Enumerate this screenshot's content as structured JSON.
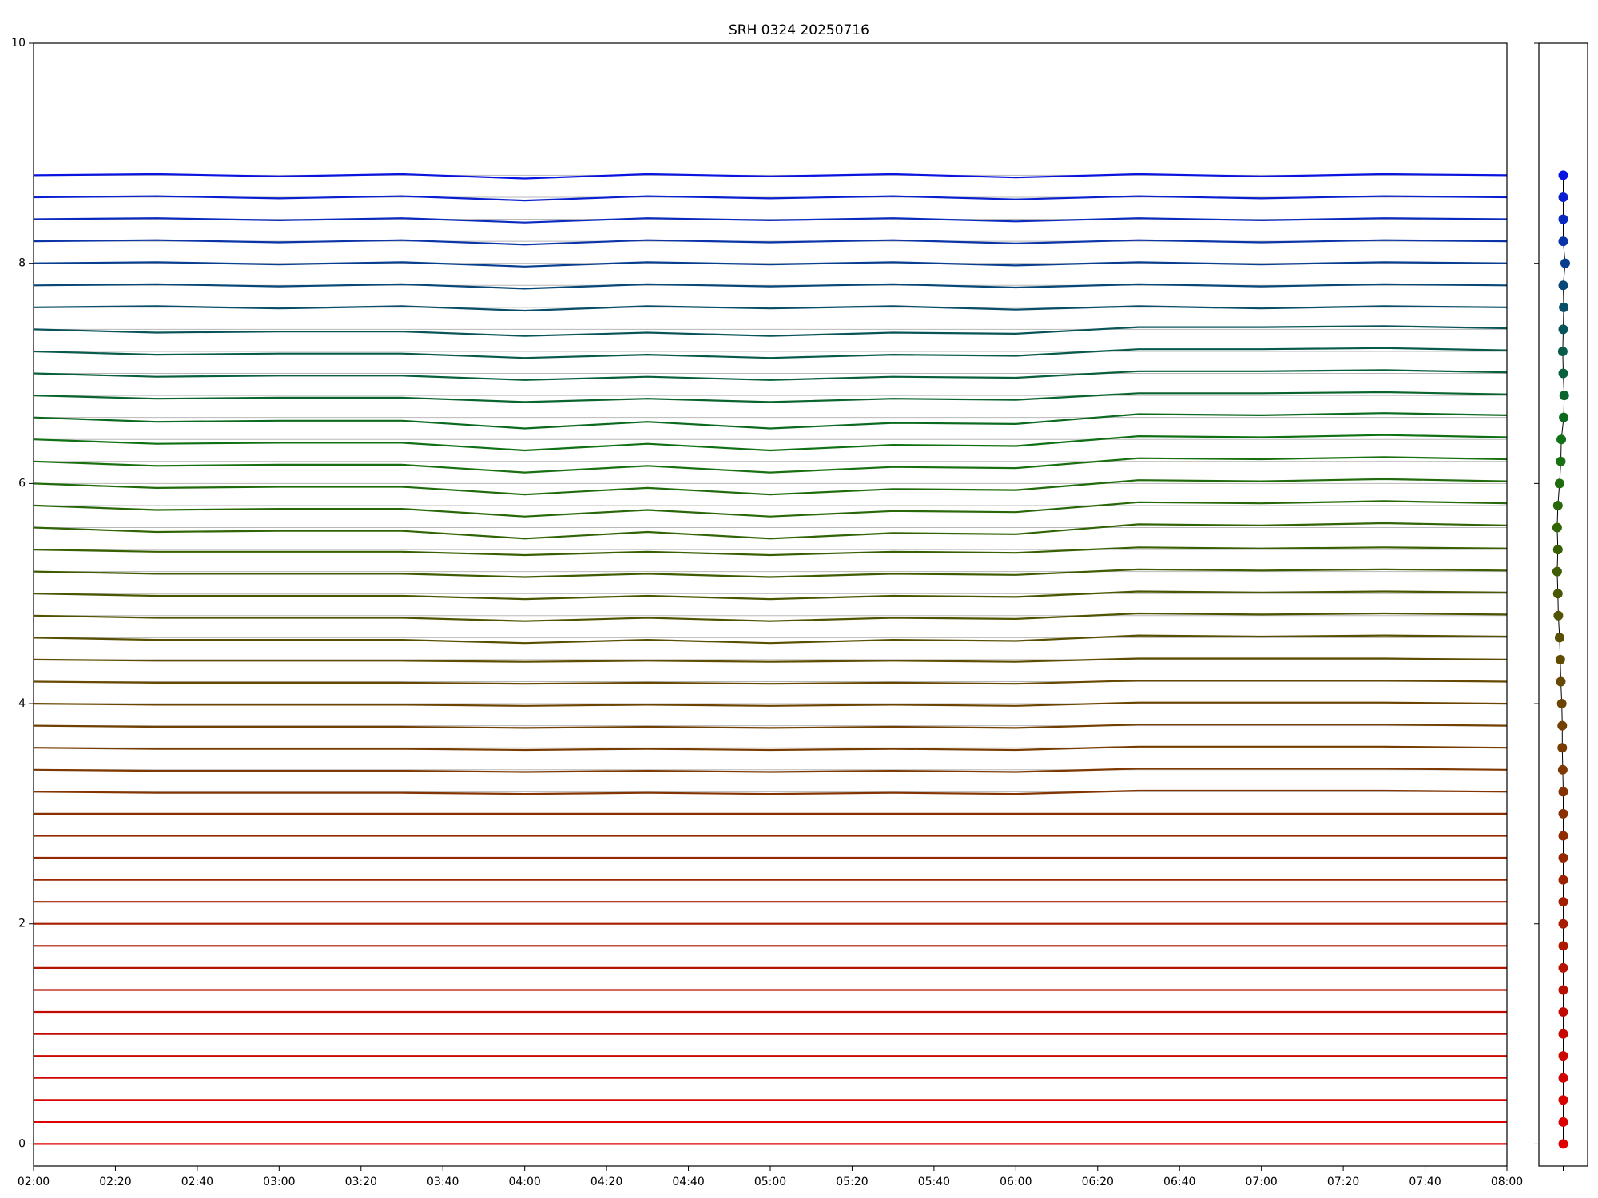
{
  "chart_data": [
    {
      "type": "line",
      "title": "SRH 0324 20250716",
      "x": [
        "02:00",
        "02:30",
        "03:00",
        "03:30",
        "04:00",
        "04:30",
        "05:00",
        "05:30",
        "06:00",
        "06:30",
        "07:00",
        "07:30",
        "08:00"
      ],
      "xlim": [
        "02:00",
        "08:00"
      ],
      "xticks": [
        "02:00",
        "02:20",
        "02:40",
        "03:00",
        "03:20",
        "03:40",
        "04:00",
        "04:20",
        "04:40",
        "05:00",
        "05:20",
        "05:40",
        "06:00",
        "06:20",
        "06:40",
        "07:00",
        "07:20",
        "07:40",
        "08:00"
      ],
      "ylim": [
        -0.2,
        10
      ],
      "yticks": [
        0,
        2,
        4,
        6,
        8,
        10
      ],
      "series": [
        {
          "offset": 0,
          "color": "#e00000",
          "values": [
            0,
            0,
            0,
            0,
            0,
            0,
            0,
            0,
            0,
            0,
            0,
            0,
            0
          ]
        },
        {
          "offset": 0.2,
          "color": "#dc0200",
          "values": [
            0.2,
            0.2,
            0.2,
            0.2,
            0.2,
            0.2,
            0.2,
            0.2,
            0.2,
            0.2,
            0.2,
            0.2,
            0.2
          ]
        },
        {
          "offset": 0.4,
          "color": "#d80400",
          "values": [
            0.4,
            0.4,
            0.4,
            0.4,
            0.4,
            0.4,
            0.4,
            0.4,
            0.4,
            0.4,
            0.4,
            0.4,
            0.4
          ]
        },
        {
          "offset": 0.6,
          "color": "#d20600",
          "values": [
            0.6,
            0.6,
            0.6,
            0.6,
            0.6,
            0.6,
            0.6,
            0.6,
            0.6,
            0.6,
            0.6,
            0.6,
            0.6
          ]
        },
        {
          "offset": 0.8,
          "color": "#cc0800",
          "values": [
            0.8,
            0.8,
            0.8,
            0.8,
            0.8,
            0.8,
            0.8,
            0.8,
            0.8,
            0.8,
            0.8,
            0.8,
            0.8
          ]
        },
        {
          "offset": 1,
          "color": "#c60a00",
          "values": [
            1,
            1,
            1,
            1,
            1,
            1,
            1,
            1,
            1,
            1,
            1,
            1,
            1
          ]
        },
        {
          "offset": 1.2,
          "color": "#c00c00",
          "values": [
            1.2,
            1.2,
            1.2,
            1.2,
            1.2,
            1.2,
            1.2,
            1.2,
            1.2,
            1.2,
            1.2,
            1.2,
            1.2
          ]
        },
        {
          "offset": 1.4,
          "color": "#ba1000",
          "values": [
            1.4,
            1.4,
            1.4,
            1.4,
            1.4,
            1.4,
            1.4,
            1.4,
            1.4,
            1.4,
            1.4,
            1.4,
            1.4
          ]
        },
        {
          "offset": 1.6,
          "color": "#b41400",
          "values": [
            1.6,
            1.6,
            1.6,
            1.6,
            1.6,
            1.6,
            1.6,
            1.6,
            1.6,
            1.6,
            1.6,
            1.6,
            1.6
          ]
        },
        {
          "offset": 1.8,
          "color": "#ae1800",
          "values": [
            1.8,
            1.8,
            1.8,
            1.8,
            1.8,
            1.8,
            1.8,
            1.8,
            1.8,
            1.8,
            1.8,
            1.8,
            1.8
          ]
        },
        {
          "offset": 2,
          "color": "#a81c00",
          "values": [
            2,
            2,
            2,
            2,
            2,
            2,
            2,
            2,
            2,
            2,
            2,
            2,
            2
          ]
        },
        {
          "offset": 2.2,
          "color": "#a22000",
          "values": [
            2.2,
            2.2,
            2.2,
            2.2,
            2.2,
            2.2,
            2.2,
            2.2,
            2.2,
            2.2,
            2.2,
            2.2,
            2.2
          ]
        },
        {
          "offset": 2.4,
          "color": "#9c2400",
          "values": [
            2.4,
            2.4,
            2.4,
            2.4,
            2.4,
            2.4,
            2.4,
            2.4,
            2.4,
            2.4,
            2.4,
            2.4,
            2.4
          ]
        },
        {
          "offset": 2.6,
          "color": "#962800",
          "values": [
            2.6,
            2.6,
            2.6,
            2.6,
            2.6,
            2.6,
            2.6,
            2.6,
            2.6,
            2.6,
            2.6,
            2.6,
            2.6
          ]
        },
        {
          "offset": 2.8,
          "color": "#902c00",
          "values": [
            2.8,
            2.8,
            2.8,
            2.8,
            2.8,
            2.8,
            2.8,
            2.8,
            2.8,
            2.8,
            2.8,
            2.8,
            2.8
          ]
        },
        {
          "offset": 3,
          "color": "#8a3000",
          "values": [
            3,
            3,
            3,
            3,
            3,
            3,
            3,
            3,
            3,
            3,
            3,
            3,
            3
          ]
        },
        {
          "offset": 3.2,
          "color": "#843400",
          "values": [
            3.2,
            3.19,
            3.19,
            3.19,
            3.18,
            3.19,
            3.18,
            3.19,
            3.18,
            3.21,
            3.21,
            3.21,
            3.2
          ]
        },
        {
          "offset": 3.4,
          "color": "#7e3800",
          "values": [
            3.4,
            3.39,
            3.39,
            3.39,
            3.38,
            3.39,
            3.38,
            3.39,
            3.38,
            3.41,
            3.41,
            3.41,
            3.4
          ]
        },
        {
          "offset": 3.6,
          "color": "#783c00",
          "values": [
            3.6,
            3.59,
            3.59,
            3.59,
            3.58,
            3.59,
            3.58,
            3.59,
            3.58,
            3.61,
            3.61,
            3.61,
            3.6
          ]
        },
        {
          "offset": 3.8,
          "color": "#724000",
          "values": [
            3.8,
            3.79,
            3.79,
            3.79,
            3.78,
            3.79,
            3.78,
            3.79,
            3.78,
            3.81,
            3.81,
            3.81,
            3.8
          ]
        },
        {
          "offset": 4,
          "color": "#6c4400",
          "values": [
            4,
            3.99,
            3.99,
            3.99,
            3.98,
            3.99,
            3.98,
            3.99,
            3.98,
            4.01,
            4.01,
            4.01,
            4
          ]
        },
        {
          "offset": 4.2,
          "color": "#664800",
          "values": [
            4.2,
            4.19,
            4.19,
            4.19,
            4.18,
            4.19,
            4.18,
            4.19,
            4.18,
            4.21,
            4.21,
            4.21,
            4.2
          ]
        },
        {
          "offset": 4.4,
          "color": "#5f4c00",
          "values": [
            4.4,
            4.39,
            4.39,
            4.39,
            4.38,
            4.39,
            4.38,
            4.39,
            4.38,
            4.41,
            4.41,
            4.41,
            4.4
          ]
        },
        {
          "offset": 4.6,
          "color": "#585000",
          "values": [
            4.6,
            4.58,
            4.58,
            4.58,
            4.55,
            4.58,
            4.55,
            4.58,
            4.57,
            4.62,
            4.61,
            4.62,
            4.61
          ]
        },
        {
          "offset": 4.8,
          "color": "#505400",
          "values": [
            4.8,
            4.78,
            4.78,
            4.78,
            4.75,
            4.78,
            4.75,
            4.78,
            4.77,
            4.82,
            4.81,
            4.82,
            4.81
          ]
        },
        {
          "offset": 5,
          "color": "#485800",
          "values": [
            5,
            4.98,
            4.98,
            4.98,
            4.95,
            4.98,
            4.95,
            4.98,
            4.97,
            5.02,
            5.01,
            5.02,
            5.01
          ]
        },
        {
          "offset": 5.2,
          "color": "#405c00",
          "values": [
            5.2,
            5.18,
            5.18,
            5.18,
            5.15,
            5.18,
            5.15,
            5.18,
            5.17,
            5.22,
            5.21,
            5.22,
            5.21
          ]
        },
        {
          "offset": 5.4,
          "color": "#386000",
          "values": [
            5.4,
            5.38,
            5.38,
            5.38,
            5.35,
            5.38,
            5.35,
            5.38,
            5.37,
            5.42,
            5.41,
            5.42,
            5.41
          ]
        },
        {
          "offset": 5.6,
          "color": "#306404",
          "values": [
            5.6,
            5.56,
            5.57,
            5.57,
            5.5,
            5.56,
            5.5,
            5.55,
            5.54,
            5.63,
            5.62,
            5.64,
            5.62
          ]
        },
        {
          "offset": 5.8,
          "color": "#286808",
          "values": [
            5.8,
            5.76,
            5.77,
            5.77,
            5.7,
            5.76,
            5.7,
            5.75,
            5.74,
            5.83,
            5.82,
            5.84,
            5.82
          ]
        },
        {
          "offset": 6,
          "color": "#206c0c",
          "values": [
            6,
            5.96,
            5.97,
            5.97,
            5.9,
            5.96,
            5.9,
            5.95,
            5.94,
            6.03,
            6.02,
            6.04,
            6.02
          ]
        },
        {
          "offset": 6.2,
          "color": "#187010",
          "values": [
            6.2,
            6.16,
            6.17,
            6.17,
            6.1,
            6.16,
            6.1,
            6.15,
            6.14,
            6.23,
            6.22,
            6.24,
            6.22
          ]
        },
        {
          "offset": 6.4,
          "color": "#107014",
          "values": [
            6.4,
            6.36,
            6.37,
            6.37,
            6.3,
            6.36,
            6.3,
            6.35,
            6.34,
            6.43,
            6.42,
            6.44,
            6.42
          ]
        },
        {
          "offset": 6.6,
          "color": "#0c6a20",
          "values": [
            6.6,
            6.56,
            6.57,
            6.57,
            6.5,
            6.56,
            6.5,
            6.55,
            6.54,
            6.63,
            6.62,
            6.64,
            6.62
          ]
        },
        {
          "offset": 6.8,
          "color": "#0a642e",
          "values": [
            6.8,
            6.77,
            6.78,
            6.78,
            6.74,
            6.77,
            6.74,
            6.77,
            6.76,
            6.82,
            6.82,
            6.83,
            6.81
          ]
        },
        {
          "offset": 7,
          "color": "#08603c",
          "values": [
            7,
            6.97,
            6.98,
            6.98,
            6.94,
            6.97,
            6.94,
            6.97,
            6.96,
            7.02,
            7.02,
            7.03,
            7.01
          ]
        },
        {
          "offset": 7.2,
          "color": "#085a4a",
          "values": [
            7.2,
            7.17,
            7.18,
            7.18,
            7.14,
            7.17,
            7.14,
            7.17,
            7.16,
            7.22,
            7.22,
            7.23,
            7.21
          ]
        },
        {
          "offset": 7.4,
          "color": "#085458",
          "values": [
            7.4,
            7.37,
            7.38,
            7.38,
            7.34,
            7.37,
            7.34,
            7.37,
            7.36,
            7.42,
            7.42,
            7.43,
            7.41
          ]
        },
        {
          "offset": 7.6,
          "color": "#084e68",
          "values": [
            7.6,
            7.61,
            7.59,
            7.61,
            7.57,
            7.61,
            7.59,
            7.61,
            7.58,
            7.61,
            7.59,
            7.61,
            7.6
          ]
        },
        {
          "offset": 7.8,
          "color": "#084878",
          "values": [
            7.8,
            7.81,
            7.79,
            7.81,
            7.77,
            7.81,
            7.79,
            7.81,
            7.78,
            7.81,
            7.79,
            7.81,
            7.8
          ]
        },
        {
          "offset": 8,
          "color": "#083e90",
          "values": [
            8,
            8.01,
            7.99,
            8.01,
            7.97,
            8.01,
            7.99,
            8.01,
            7.98,
            8.01,
            7.99,
            8.01,
            8
          ]
        },
        {
          "offset": 8.2,
          "color": "#0a34a8",
          "values": [
            8.2,
            8.21,
            8.19,
            8.21,
            8.17,
            8.21,
            8.19,
            8.21,
            8.18,
            8.21,
            8.19,
            8.21,
            8.2
          ]
        },
        {
          "offset": 8.4,
          "color": "#0a2ac0",
          "values": [
            8.4,
            8.41,
            8.39,
            8.41,
            8.37,
            8.41,
            8.39,
            8.41,
            8.38,
            8.41,
            8.39,
            8.41,
            8.4
          ]
        },
        {
          "offset": 8.6,
          "color": "#0a20d0",
          "values": [
            8.6,
            8.61,
            8.59,
            8.61,
            8.57,
            8.61,
            8.59,
            8.61,
            8.58,
            8.61,
            8.59,
            8.61,
            8.6
          ]
        },
        {
          "offset": 8.8,
          "color": "#0a14e0",
          "values": [
            8.8,
            8.81,
            8.79,
            8.81,
            8.77,
            8.81,
            8.79,
            8.81,
            8.78,
            8.81,
            8.79,
            8.81,
            8.8
          ]
        }
      ]
    },
    {
      "type": "scatter",
      "xlim": [
        -1,
        1
      ],
      "xticks": [
        0
      ],
      "ylim": [
        -0.2,
        10
      ],
      "yticks": [
        0,
        2,
        4,
        6,
        8,
        10
      ],
      "x": [
        0,
        0,
        0,
        0,
        0,
        0,
        0,
        0,
        0,
        0,
        0,
        0,
        0,
        0,
        0,
        0,
        0,
        -0.02,
        -0.04,
        -0.04,
        -0.06,
        -0.1,
        -0.12,
        -0.15,
        -0.2,
        -0.22,
        -0.25,
        -0.22,
        -0.25,
        -0.22,
        -0.15,
        -0.1,
        -0.08,
        0.02,
        0.04,
        0,
        -0.02,
        0,
        0.02,
        0,
        0.08,
        0,
        0,
        0,
        0
      ],
      "y": [
        0,
        0.2,
        0.4,
        0.6,
        0.8,
        1,
        1.2,
        1.4,
        1.6,
        1.8,
        2,
        2.2,
        2.4,
        2.6,
        2.8,
        3,
        3.2,
        3.4,
        3.6,
        3.8,
        4,
        4.2,
        4.4,
        4.6,
        4.8,
        5,
        5.2,
        5.4,
        5.6,
        5.8,
        6,
        6.2,
        6.4,
        6.6,
        6.8,
        7,
        7.2,
        7.4,
        7.6,
        7.8,
        8,
        8.2,
        8.4,
        8.6,
        8.8
      ]
    }
  ]
}
